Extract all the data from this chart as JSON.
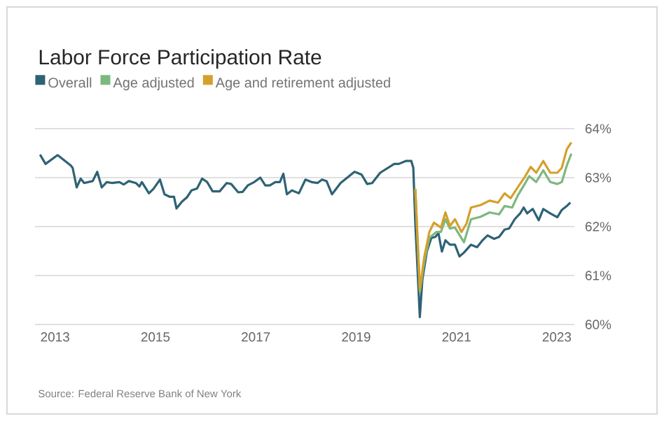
{
  "chart_data": {
    "type": "line",
    "title": "Labor Force Participation Rate",
    "annotations": [
      "Source: Federal Reserve Bank of New York"
    ],
    "xlim": [
      2012.6,
      2023.35
    ],
    "xticks": [
      2013,
      2015,
      2017,
      2019,
      2021,
      2023
    ],
    "ylim": [
      60,
      64
    ],
    "yticks": [
      {
        "value": 60,
        "label": "60%"
      },
      {
        "value": 61,
        "label": "61%"
      },
      {
        "value": 62,
        "label": "62%"
      },
      {
        "value": 63,
        "label": "63%"
      },
      {
        "value": 64,
        "label": "64%"
      }
    ],
    "grid": "y",
    "legend": "top left",
    "line_style": "solid",
    "series": [
      {
        "name": "Overall",
        "color": "#2e6275",
        "x": [
          2012.7,
          2012.81,
          2013.05,
          2013.31,
          2013.35,
          2013.43,
          2013.51,
          2013.58,
          2013.75,
          2013.84,
          2013.93,
          2014.03,
          2014.14,
          2014.28,
          2014.37,
          2014.47,
          2014.61,
          2014.68,
          2014.73,
          2014.87,
          2014.96,
          2015.09,
          2015.18,
          2015.28,
          2015.37,
          2015.42,
          2015.53,
          2015.63,
          2015.72,
          2015.83,
          2015.93,
          2016.03,
          2016.14,
          2016.28,
          2016.42,
          2016.51,
          2016.65,
          2016.74,
          2016.84,
          2016.97,
          2017.09,
          2017.19,
          2017.28,
          2017.39,
          2017.48,
          2017.55,
          2017.62,
          2017.72,
          2017.86,
          2017.99,
          2018.11,
          2018.23,
          2018.32,
          2018.41,
          2018.52,
          2018.69,
          2018.97,
          2019.11,
          2019.22,
          2019.32,
          2019.48,
          2019.76,
          2019.85,
          2019.99,
          2020.1,
          2020.14,
          2020.18,
          2020.27,
          2020.32,
          2020.41,
          2020.5,
          2020.58,
          2020.64,
          2020.71,
          2020.78,
          2020.87,
          2020.97,
          2021.06,
          2021.15,
          2021.29,
          2021.41,
          2021.52,
          2021.62,
          2021.75,
          2021.85,
          2021.96,
          2022.05,
          2022.16,
          2022.27,
          2022.34,
          2022.41,
          2022.52,
          2022.64,
          2022.73,
          2022.87,
          2023.01,
          2023.1,
          2023.2,
          2023.27
        ],
        "values": [
          63.47,
          63.28,
          63.46,
          63.25,
          63.2,
          62.8,
          62.98,
          62.89,
          62.93,
          63.12,
          62.8,
          62.91,
          62.89,
          62.91,
          62.86,
          62.93,
          62.89,
          62.82,
          62.91,
          62.68,
          62.77,
          62.96,
          62.66,
          62.61,
          62.61,
          62.37,
          62.51,
          62.6,
          62.74,
          62.78,
          62.98,
          62.91,
          62.72,
          62.72,
          62.89,
          62.87,
          62.7,
          62.71,
          62.84,
          62.91,
          63.0,
          62.84,
          62.84,
          62.91,
          62.91,
          63.08,
          62.66,
          62.74,
          62.68,
          62.96,
          62.91,
          62.89,
          62.96,
          62.93,
          62.66,
          62.89,
          63.12,
          63.06,
          62.87,
          62.89,
          63.1,
          63.28,
          63.28,
          63.34,
          63.34,
          63.2,
          62.06,
          60.15,
          60.91,
          61.49,
          61.77,
          61.79,
          61.87,
          61.49,
          61.72,
          61.63,
          61.63,
          61.39,
          61.47,
          61.63,
          61.58,
          61.72,
          61.82,
          61.75,
          61.79,
          61.94,
          61.96,
          62.15,
          62.27,
          62.39,
          62.27,
          62.36,
          62.13,
          62.36,
          62.27,
          62.19,
          62.34,
          62.42,
          62.49
        ]
      },
      {
        "name": "Age adjusted",
        "color": "#7cb87e",
        "x": [
          2020.18,
          2020.27,
          2020.36,
          2020.46,
          2020.6,
          2020.69,
          2020.78,
          2020.87,
          2020.97,
          2021.15,
          2021.29,
          2021.48,
          2021.66,
          2021.85,
          2021.96,
          2022.11,
          2022.22,
          2022.36,
          2022.45,
          2022.59,
          2022.73,
          2022.87,
          2023.01,
          2023.1,
          2023.2,
          2023.29
        ],
        "values": [
          62.77,
          60.67,
          61.29,
          61.77,
          61.89,
          61.89,
          62.15,
          61.96,
          61.98,
          61.68,
          62.15,
          62.2,
          62.29,
          62.25,
          62.42,
          62.39,
          62.63,
          62.87,
          63.03,
          62.91,
          63.15,
          62.91,
          62.87,
          62.91,
          63.25,
          63.49
        ]
      },
      {
        "name": "Age and retirement adjusted",
        "color": "#d4a02c",
        "x": [
          2020.18,
          2020.27,
          2020.36,
          2020.46,
          2020.55,
          2020.69,
          2020.78,
          2020.87,
          2020.97,
          2021.1,
          2021.2,
          2021.29,
          2021.48,
          2021.66,
          2021.83,
          2021.96,
          2022.08,
          2022.22,
          2022.36,
          2022.48,
          2022.59,
          2022.73,
          2022.87,
          2023.01,
          2023.1,
          2023.2,
          2023.29
        ],
        "values": [
          62.77,
          60.72,
          61.39,
          61.89,
          62.08,
          61.98,
          62.29,
          62.01,
          62.15,
          61.89,
          62.06,
          62.39,
          62.44,
          62.53,
          62.49,
          62.68,
          62.58,
          62.8,
          63.01,
          63.22,
          63.1,
          63.34,
          63.1,
          63.1,
          63.2,
          63.58,
          63.72
        ]
      }
    ]
  }
}
